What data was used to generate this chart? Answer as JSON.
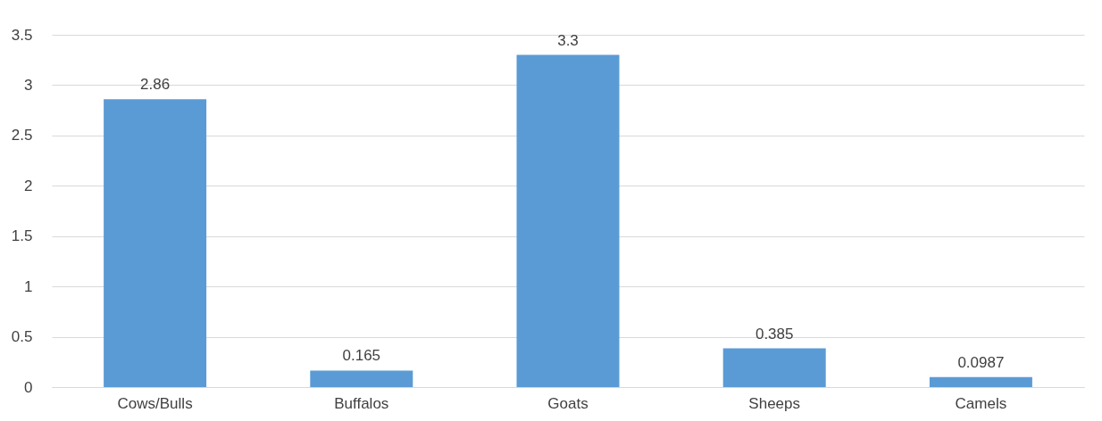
{
  "chart_data": {
    "type": "bar",
    "categories": [
      "Cows/Bulls",
      "Buffalos",
      "Goats",
      "Sheeps",
      "Camels"
    ],
    "values": [
      2.86,
      0.165,
      3.3,
      0.385,
      0.0987
    ],
    "color": "#5b9bd5",
    "ylim": [
      0,
      3.5
    ],
    "yticks": [
      0,
      0.5,
      1,
      1.5,
      2,
      2.5,
      3,
      3.5
    ],
    "grid": "y",
    "data_labels": true
  }
}
